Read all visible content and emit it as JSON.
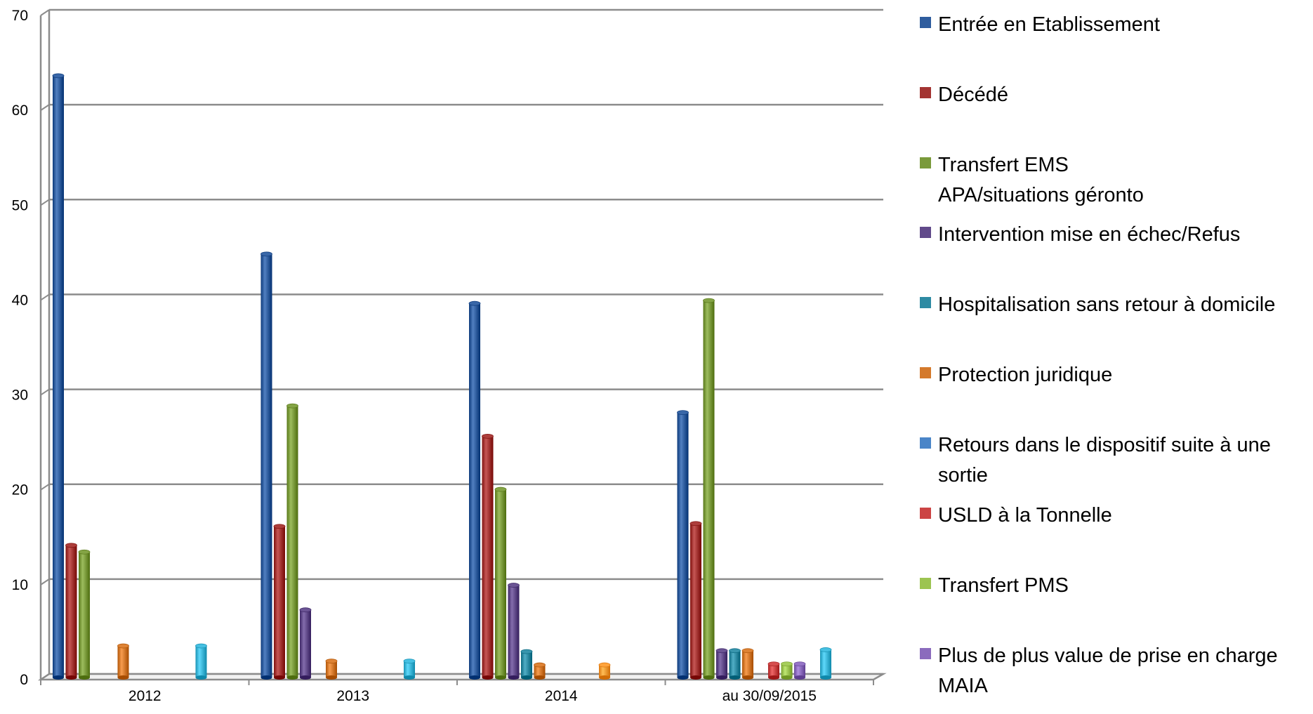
{
  "chart_data": {
    "type": "bar",
    "title": "",
    "xlabel": "",
    "ylabel": "",
    "ylim": [
      0,
      70
    ],
    "yticks": [
      0,
      10,
      20,
      30,
      40,
      50,
      60,
      70
    ],
    "grid": true,
    "legend_position": "right",
    "categories": [
      "2012",
      "2013",
      "2014",
      "au 30/09/2015"
    ],
    "series": [
      {
        "name": "Entrée en Etablissement",
        "color": "#2f5d9e",
        "values": [
          63.5,
          44.7,
          39.5,
          28
        ]
      },
      {
        "name": "Décédé",
        "color": "#a33432",
        "values": [
          14,
          16,
          25.5,
          16.3
        ]
      },
      {
        "name": "Transfert EMS APA/situations géronto",
        "color": "#7a9a3b",
        "values": [
          13.3,
          28.7,
          19.9,
          39.8
        ]
      },
      {
        "name": "Intervention mise en échec/Refus",
        "color": "#614a8a",
        "values": [
          0,
          7.2,
          9.8,
          2.9
        ]
      },
      {
        "name": "Hospitalisation sans retour à domicile",
        "color": "#2e8ba3",
        "values": [
          0,
          0,
          2.8,
          2.9
        ]
      },
      {
        "name": "Protection juridique",
        "color": "#d4792b",
        "values": [
          3.4,
          1.8,
          1.4,
          2.9
        ]
      },
      {
        "name": "Retours dans le dispositif suite à une sortie",
        "color": "#4a85c8",
        "values": [
          0,
          0,
          0,
          0
        ]
      },
      {
        "name": "USLD à la Tonnelle",
        "color": "#cc4444",
        "values": [
          0,
          0,
          0,
          1.5
        ]
      },
      {
        "name": "Transfert PMS",
        "color": "#9cc451",
        "values": [
          0,
          0,
          0,
          1.5
        ]
      },
      {
        "name": "Plus de plus value de prise en charge MAIA",
        "color": "#8b6bbd",
        "values": [
          0,
          0,
          0,
          1.5
        ]
      },
      {
        "name": "",
        "color": "#ff9a33",
        "values": [
          0,
          0,
          1.4,
          0
        ]
      },
      {
        "name": "",
        "color": "#3cb6d8",
        "values": [
          3.4,
          1.8,
          0,
          3
        ]
      }
    ]
  },
  "legend_swatch_colors": [
    "#2f5d9e",
    "#a33432",
    "#7a9a3b",
    "#614a8a",
    "#2e8ba3",
    "#d4792b",
    "#4a85c8",
    "#cc4444",
    "#9cc451",
    "#8b6bbd"
  ]
}
